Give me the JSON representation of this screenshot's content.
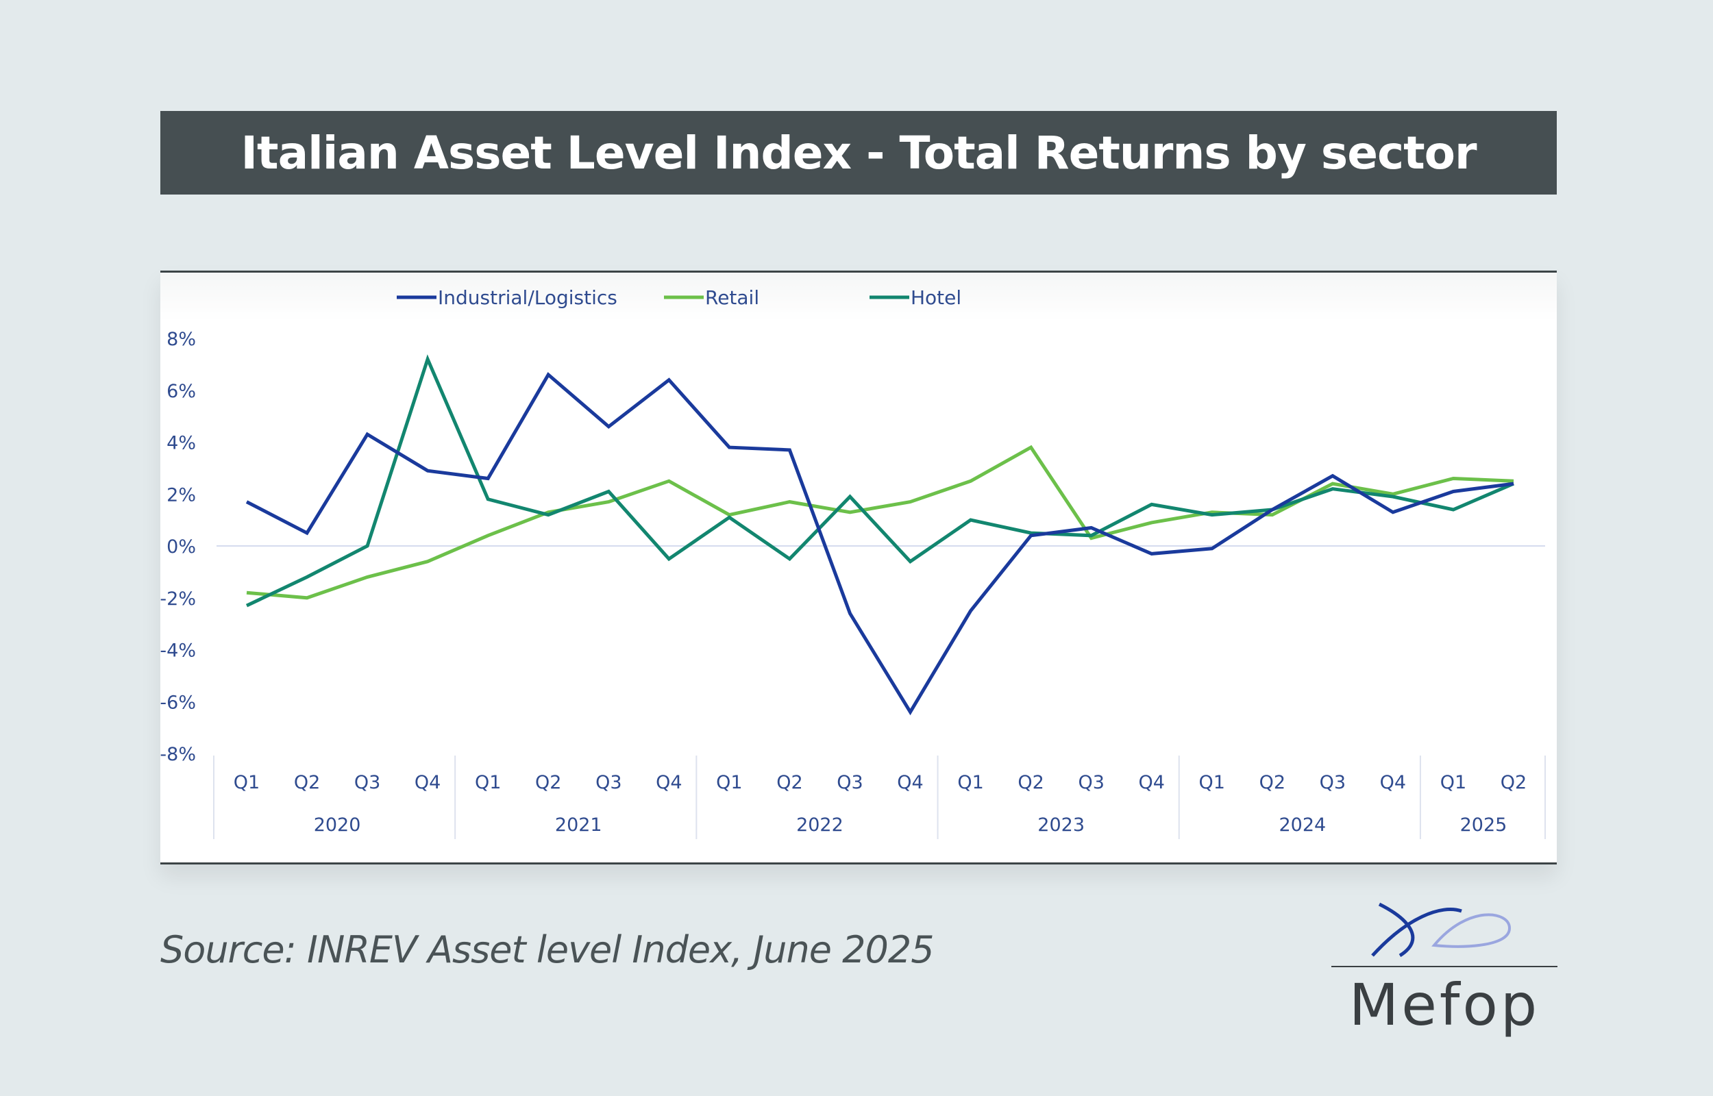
{
  "title": "Italian Asset Level Index - Total Returns by sector",
  "source": "Source: INREV Asset level Index, June 2025",
  "logo": {
    "text": "Mefop"
  },
  "chart_data": {
    "type": "line",
    "title": "",
    "xlabel": "",
    "ylabel": "",
    "ylim": [
      -8,
      8
    ],
    "yticks": [
      8,
      6,
      4,
      2,
      0,
      -2,
      -4,
      -6,
      -8
    ],
    "ytick_labels": [
      "8%",
      "6%",
      "4%",
      "2%",
      "0%",
      "-2%",
      "-4%",
      "-6%",
      "-8%"
    ],
    "legend_placement": "top-left",
    "grid": false,
    "zero_line": true,
    "years": [
      {
        "label": "2020",
        "quarters": [
          "Q1",
          "Q2",
          "Q3",
          "Q4"
        ]
      },
      {
        "label": "2021",
        "quarters": [
          "Q1",
          "Q2",
          "Q3",
          "Q4"
        ]
      },
      {
        "label": "2022",
        "quarters": [
          "Q1",
          "Q2",
          "Q3",
          "Q4"
        ]
      },
      {
        "label": "2023",
        "quarters": [
          "Q1",
          "Q2",
          "Q3",
          "Q4"
        ]
      },
      {
        "label": "2024",
        "quarters": [
          "Q1",
          "Q2",
          "Q3",
          "Q4"
        ]
      },
      {
        "label": "2025",
        "quarters": [
          "Q1",
          "Q2"
        ]
      }
    ],
    "series": [
      {
        "name": "Industrial/Logistics",
        "color": "#1a3a9c",
        "values": [
          1.7,
          0.5,
          4.3,
          2.9,
          2.6,
          6.6,
          4.6,
          6.4,
          3.8,
          3.7,
          -2.6,
          -6.4,
          -2.5,
          0.4,
          0.7,
          -0.3,
          -0.1,
          1.4,
          2.7,
          1.3,
          2.1,
          2.4
        ]
      },
      {
        "name": "Retail",
        "color": "#6cc04a",
        "values": [
          -1.8,
          -2.0,
          -1.2,
          -0.6,
          0.4,
          1.3,
          1.7,
          2.5,
          1.2,
          1.7,
          1.3,
          1.7,
          2.5,
          3.8,
          0.3,
          0.9,
          1.3,
          1.2,
          2.4,
          2.0,
          2.6,
          2.5
        ]
      },
      {
        "name": "Hotel",
        "color": "#12866f",
        "values": [
          -2.3,
          -1.2,
          0.0,
          7.2,
          1.8,
          1.2,
          2.1,
          -0.5,
          1.1,
          -0.5,
          1.9,
          -0.6,
          1.0,
          0.5,
          0.4,
          1.6,
          1.2,
          1.4,
          2.2,
          1.9,
          1.4,
          2.4
        ]
      }
    ]
  },
  "colors": {
    "background": "#e3eaec",
    "title_bar": "#464f52",
    "axis_text": "#2f4b8f"
  }
}
